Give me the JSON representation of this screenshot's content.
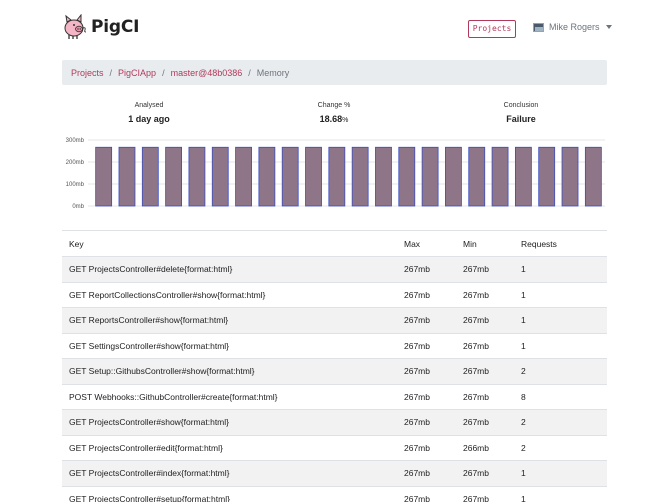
{
  "app": {
    "name": "PigCI",
    "logo_icon": "pig-icon"
  },
  "nav": {
    "projects_button": "Projects",
    "user_name": "Mike Rogers",
    "user_avatar_icon": "avatar-icon"
  },
  "breadcrumb": {
    "items": [
      "Projects",
      "PigCIApp",
      "master@48b0386"
    ],
    "active": "Memory",
    "separator": "/"
  },
  "stats": {
    "analysed": {
      "label": "Analysed",
      "value": "1 day ago"
    },
    "change": {
      "label": "Change %",
      "value": "18.68",
      "unit": "%"
    },
    "conclusion": {
      "label": "Conclusion",
      "value": "Failure"
    }
  },
  "chart_data": {
    "type": "bar",
    "y_ticks": [
      "300mb",
      "200mb",
      "100mb",
      "0mb"
    ],
    "ylim": [
      0,
      300
    ],
    "unit": "mb",
    "values": [
      267,
      267,
      267,
      267,
      267,
      267,
      267,
      267,
      267,
      267,
      267,
      267,
      267,
      267,
      267,
      267,
      267,
      267,
      267,
      267,
      267,
      267
    ],
    "bar_color": "#8e7587",
    "bar_border": "#3b4cc0",
    "grid": true
  },
  "table": {
    "headers": {
      "key": "Key",
      "max": "Max",
      "min": "Min",
      "requests": "Requests"
    },
    "rows": [
      {
        "key": "GET ProjectsController#delete{format:html}",
        "max": "267mb",
        "min": "267mb",
        "requests": "1"
      },
      {
        "key": "GET ReportCollectionsController#show{format:html}",
        "max": "267mb",
        "min": "267mb",
        "requests": "1"
      },
      {
        "key": "GET ReportsController#show{format:html}",
        "max": "267mb",
        "min": "267mb",
        "requests": "1"
      },
      {
        "key": "GET SettingsController#show{format:html}",
        "max": "267mb",
        "min": "267mb",
        "requests": "1"
      },
      {
        "key": "GET Setup::GithubsController#show{format:html}",
        "max": "267mb",
        "min": "267mb",
        "requests": "2"
      },
      {
        "key": "POST Webhooks::GithubController#create{format:html}",
        "max": "267mb",
        "min": "267mb",
        "requests": "8"
      },
      {
        "key": "GET ProjectsController#show{format:html}",
        "max": "267mb",
        "min": "267mb",
        "requests": "2"
      },
      {
        "key": "GET ProjectsController#edit{format:html}",
        "max": "267mb",
        "min": "266mb",
        "requests": "2"
      },
      {
        "key": "GET ProjectsController#index{format:html}",
        "max": "267mb",
        "min": "267mb",
        "requests": "1"
      },
      {
        "key": "GET ProjectsController#setup{format:html}",
        "max": "267mb",
        "min": "267mb",
        "requests": "1"
      }
    ]
  }
}
